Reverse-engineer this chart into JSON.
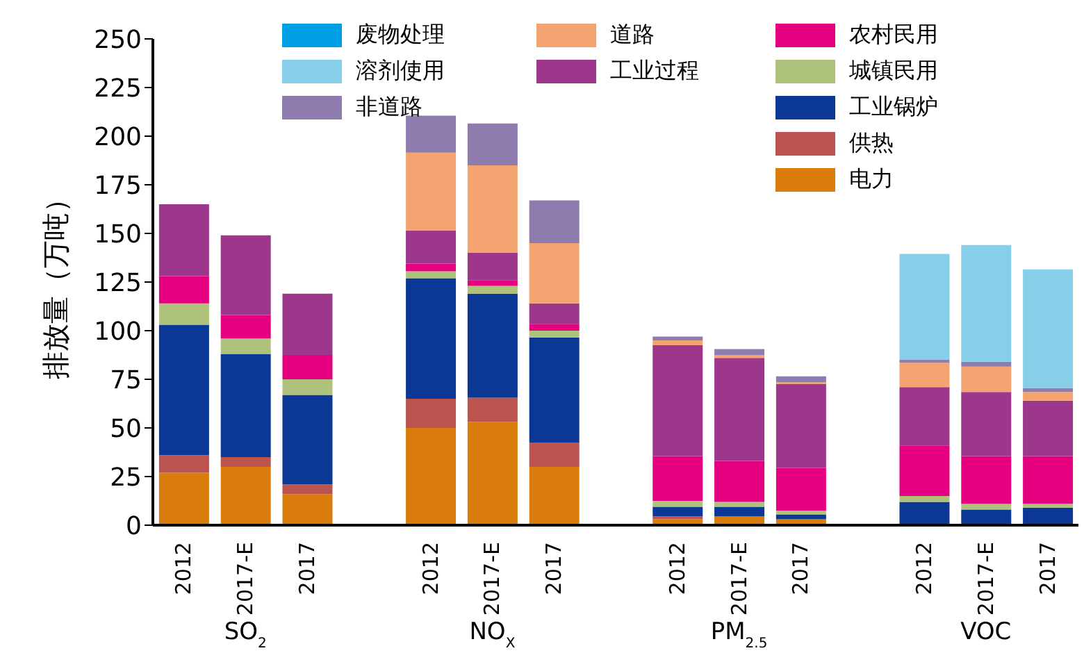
{
  "chart_data": {
    "type": "bar",
    "stacked": true,
    "ylabel": "排放量（万吨）",
    "categories": [
      "2012",
      "2017-E",
      "2017",
      null,
      "2012",
      "2017-E",
      "2017",
      null,
      "2012",
      "2017-E",
      "2017",
      null,
      "2012",
      "2017-E",
      "2017"
    ],
    "annotations": [
      "SO$_{2}$",
      "NO$_{X}$",
      "PM$_{2.5}$",
      "VOC"
    ],
    "ylim": [
      0,
      250
    ],
    "yticks": [
      0,
      25,
      50,
      75,
      100,
      125,
      150,
      175,
      200,
      225,
      250
    ],
    "grid": false,
    "legend": "top",
    "series": [
      {
        "name": "电力",
        "color": "#d97c0c",
        "values": [
          27,
          30,
          16,
          null,
          50,
          53,
          30,
          null,
          3,
          4.5,
          3,
          null,
          null,
          null,
          null
        ]
      },
      {
        "name": "供热",
        "color": "#bb544f",
        "values": [
          9,
          5,
          5,
          null,
          15,
          12.5,
          12.5,
          null,
          1.5,
          null,
          null,
          null,
          null,
          null,
          null
        ]
      },
      {
        "name": "工业锅炉",
        "color": "#0b3894",
        "values": [
          67,
          53,
          46,
          null,
          62,
          53.5,
          54,
          null,
          5,
          5,
          2.5,
          null,
          12,
          8,
          9
        ]
      },
      {
        "name": "城镇民用",
        "color": "#afc27c",
        "values": [
          11,
          8,
          8,
          null,
          3.5,
          4,
          3.5,
          null,
          3,
          2.5,
          2,
          null,
          3,
          3,
          2
        ]
      },
      {
        "name": "农村民用",
        "color": "#e4007f",
        "values": [
          14,
          12,
          12.5,
          null,
          4,
          3,
          3.5,
          null,
          23,
          21,
          22,
          null,
          26,
          24.5,
          24.5
        ]
      },
      {
        "name": "工业过程",
        "color": "#9c378c",
        "values": [
          37,
          41,
          31.5,
          null,
          17,
          14,
          10.5,
          null,
          57,
          53,
          43,
          null,
          30,
          33,
          28.5
        ]
      },
      {
        "name": "道路",
        "color": "#f4a470",
        "values": [
          null,
          null,
          null,
          null,
          40,
          45,
          31,
          null,
          2.5,
          1.5,
          1,
          null,
          12.5,
          13,
          4.5
        ]
      },
      {
        "name": "非道路",
        "color": "#8e7cae",
        "values": [
          null,
          null,
          null,
          null,
          19,
          21.5,
          22,
          null,
          2,
          3,
          3,
          null,
          1.5,
          2.5,
          2
        ]
      },
      {
        "name": "溶剂使用",
        "color": "#87cfe8",
        "values": [
          null,
          null,
          null,
          null,
          null,
          null,
          null,
          null,
          null,
          null,
          null,
          null,
          54.5,
          60,
          61
        ]
      },
      {
        "name": "废物处理",
        "color": "#00a0e6",
        "values": [
          null,
          null,
          null,
          null,
          null,
          null,
          null,
          null,
          null,
          null,
          null,
          null,
          null,
          null,
          null
        ]
      }
    ]
  }
}
